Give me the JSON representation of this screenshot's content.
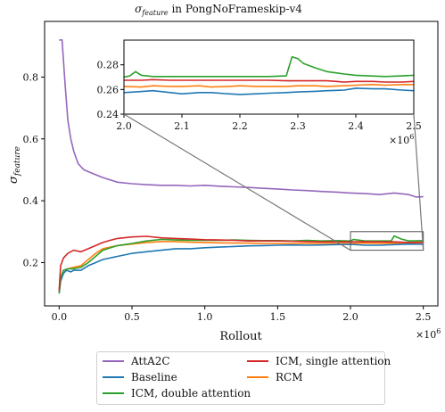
{
  "chart_data": {
    "type": "line",
    "title": "σ_feature in PongNoFrameskip-v4",
    "title_base": "σ",
    "title_sub": "feature",
    "title_rest": " in PongNoFrameskip-v4",
    "xlabel": "Rollout",
    "ylabel_base": "σ",
    "ylabel_sub": "feature",
    "x_multiplier": "×10",
    "x_multiplier_exp": "6",
    "xlim": [
      -0.1,
      2.6
    ],
    "ylim": [
      0.06,
      0.98
    ],
    "xticks": [
      {
        "v": 0.0,
        "label": "0.0"
      },
      {
        "v": 0.5,
        "label": "0.5"
      },
      {
        "v": 1.0,
        "label": "1.0"
      },
      {
        "v": 1.5,
        "label": "1.5"
      },
      {
        "v": 2.0,
        "label": "2.0"
      },
      {
        "v": 2.5,
        "label": "2.5"
      }
    ],
    "yticks": [
      {
        "v": 0.2,
        "label": "0.2"
      },
      {
        "v": 0.4,
        "label": "0.4"
      },
      {
        "v": 0.6,
        "label": "0.6"
      },
      {
        "v": 0.8,
        "label": "0.8"
      }
    ],
    "legend_placement": "below",
    "series": [
      {
        "name": "AttA2C",
        "color": "#9467bd",
        "x": [
          0,
          0.02,
          0.04,
          0.06,
          0.08,
          0.1,
          0.13,
          0.17,
          0.22,
          0.3,
          0.4,
          0.5,
          0.6,
          0.7,
          0.8,
          0.9,
          1.0,
          1.1,
          1.2,
          1.3,
          1.4,
          1.5,
          1.6,
          1.7,
          1.8,
          1.9,
          2.0,
          2.1,
          2.2,
          2.3,
          2.4,
          2.45,
          2.5
        ],
        "y": [
          0.92,
          0.92,
          0.78,
          0.66,
          0.6,
          0.56,
          0.52,
          0.5,
          0.49,
          0.475,
          0.46,
          0.455,
          0.452,
          0.45,
          0.45,
          0.448,
          0.45,
          0.447,
          0.445,
          0.443,
          0.44,
          0.438,
          0.435,
          0.433,
          0.43,
          0.428,
          0.425,
          0.423,
          0.42,
          0.425,
          0.42,
          0.412,
          0.413
        ]
      },
      {
        "name": "Baseline",
        "color": "#1f77b4",
        "x": [
          0,
          0.01,
          0.03,
          0.05,
          0.08,
          0.1,
          0.15,
          0.2,
          0.25,
          0.3,
          0.4,
          0.5,
          0.6,
          0.7,
          0.8,
          0.9,
          1.0,
          1.1,
          1.2,
          1.3,
          1.4,
          1.5,
          1.6,
          1.7,
          1.8,
          1.9,
          2.0,
          2.1,
          2.2,
          2.3,
          2.4,
          2.5
        ],
        "y": [
          0.1,
          0.14,
          0.165,
          0.175,
          0.17,
          0.175,
          0.175,
          0.19,
          0.2,
          0.21,
          0.22,
          0.23,
          0.235,
          0.24,
          0.245,
          0.245,
          0.248,
          0.25,
          0.252,
          0.254,
          0.255,
          0.256,
          0.257,
          0.256,
          0.257,
          0.258,
          0.259,
          0.256,
          0.256,
          0.258,
          0.26,
          0.259
        ]
      },
      {
        "name": "ICM, double attention",
        "color": "#2ca02c",
        "x": [
          0,
          0.01,
          0.03,
          0.06,
          0.1,
          0.15,
          0.2,
          0.25,
          0.3,
          0.4,
          0.5,
          0.6,
          0.7,
          0.8,
          0.9,
          1.0,
          1.1,
          1.2,
          1.3,
          1.4,
          1.5,
          1.6,
          1.7,
          1.8,
          1.9,
          2.0,
          2.02,
          2.1,
          2.2,
          2.28,
          2.3,
          2.35,
          2.4,
          2.5
        ],
        "y": [
          0.1,
          0.15,
          0.175,
          0.18,
          0.18,
          0.185,
          0.2,
          0.22,
          0.24,
          0.255,
          0.262,
          0.27,
          0.275,
          0.273,
          0.272,
          0.272,
          0.272,
          0.273,
          0.272,
          0.271,
          0.271,
          0.27,
          0.272,
          0.27,
          0.271,
          0.27,
          0.275,
          0.27,
          0.27,
          0.27,
          0.286,
          0.276,
          0.27,
          0.271
        ]
      },
      {
        "name": "ICM, single attention",
        "color": "#d62728",
        "x": [
          0,
          0.01,
          0.03,
          0.06,
          0.1,
          0.15,
          0.2,
          0.25,
          0.3,
          0.35,
          0.4,
          0.5,
          0.6,
          0.7,
          0.8,
          0.9,
          1.0,
          1.1,
          1.2,
          1.3,
          1.4,
          1.5,
          1.6,
          1.7,
          1.8,
          1.9,
          2.0,
          2.1,
          2.2,
          2.3,
          2.4,
          2.5
        ],
        "y": [
          0.11,
          0.19,
          0.215,
          0.23,
          0.24,
          0.235,
          0.245,
          0.255,
          0.265,
          0.272,
          0.278,
          0.283,
          0.285,
          0.28,
          0.278,
          0.276,
          0.274,
          0.273,
          0.272,
          0.27,
          0.27,
          0.27,
          0.269,
          0.268,
          0.267,
          0.267,
          0.267,
          0.268,
          0.267,
          0.267,
          0.265,
          0.266
        ]
      },
      {
        "name": "RCM",
        "color": "#ff7f0e",
        "x": [
          0,
          0.01,
          0.03,
          0.06,
          0.1,
          0.15,
          0.2,
          0.25,
          0.3,
          0.4,
          0.5,
          0.6,
          0.7,
          0.8,
          0.9,
          1.0,
          1.1,
          1.2,
          1.3,
          1.4,
          1.5,
          1.6,
          1.7,
          1.8,
          1.9,
          2.0,
          2.1,
          2.2,
          2.3,
          2.4,
          2.5
        ],
        "y": [
          0.105,
          0.15,
          0.175,
          0.18,
          0.185,
          0.19,
          0.21,
          0.23,
          0.245,
          0.255,
          0.26,
          0.265,
          0.268,
          0.268,
          0.266,
          0.265,
          0.264,
          0.263,
          0.263,
          0.262,
          0.262,
          0.262,
          0.262,
          0.262,
          0.262,
          0.262,
          0.263,
          0.262,
          0.263,
          0.263,
          0.264
        ]
      }
    ],
    "inset": {
      "xlim": [
        2.0,
        2.5
      ],
      "ylim": [
        0.24,
        0.3
      ],
      "xticks": [
        {
          "v": 2.0,
          "label": "2.0"
        },
        {
          "v": 2.1,
          "label": "2.1"
        },
        {
          "v": 2.2,
          "label": "2.2"
        },
        {
          "v": 2.3,
          "label": "2.3"
        },
        {
          "v": 2.4,
          "label": "2.4"
        },
        {
          "v": 2.5,
          "label": "2.5"
        }
      ],
      "yticks": [
        {
          "v": 0.24,
          "label": "0.24"
        },
        {
          "v": 0.26,
          "label": "0.26"
        },
        {
          "v": 0.28,
          "label": "0.28"
        }
      ],
      "x_multiplier": "×10",
      "x_multiplier_exp": "6",
      "series": [
        {
          "name": "AttA2C",
          "color": "#9467bd",
          "x": [],
          "y": []
        },
        {
          "name": "Baseline",
          "color": "#1f77b4",
          "x": [
            2.0,
            2.02,
            2.05,
            2.08,
            2.1,
            2.13,
            2.15,
            2.18,
            2.2,
            2.23,
            2.25,
            2.28,
            2.3,
            2.33,
            2.35,
            2.38,
            2.4,
            2.43,
            2.45,
            2.48,
            2.5
          ],
          "y": [
            0.2575,
            0.258,
            0.259,
            0.2575,
            0.2565,
            0.2575,
            0.2575,
            0.2565,
            0.256,
            0.2565,
            0.257,
            0.2575,
            0.258,
            0.2585,
            0.259,
            0.2595,
            0.261,
            0.2605,
            0.2605,
            0.2595,
            0.259
          ]
        },
        {
          "name": "ICM, double attention",
          "color": "#2ca02c",
          "x": [
            2.0,
            2.01,
            2.02,
            2.03,
            2.05,
            2.08,
            2.1,
            2.15,
            2.2,
            2.25,
            2.28,
            2.29,
            2.3,
            2.31,
            2.33,
            2.35,
            2.38,
            2.4,
            2.45,
            2.48,
            2.5
          ],
          "y": [
            0.27,
            0.271,
            0.2745,
            0.2715,
            0.2705,
            0.2705,
            0.2705,
            0.2705,
            0.2705,
            0.2705,
            0.271,
            0.2865,
            0.285,
            0.281,
            0.2775,
            0.2745,
            0.2725,
            0.2715,
            0.2705,
            0.271,
            0.2715
          ]
        },
        {
          "name": "ICM, single attention",
          "color": "#d62728",
          "x": [
            2.0,
            2.03,
            2.05,
            2.08,
            2.1,
            2.13,
            2.15,
            2.18,
            2.2,
            2.23,
            2.25,
            2.28,
            2.3,
            2.33,
            2.35,
            2.38,
            2.4,
            2.43,
            2.45,
            2.48,
            2.5
          ],
          "y": [
            0.2675,
            0.2675,
            0.268,
            0.2675,
            0.2675,
            0.2675,
            0.2675,
            0.2675,
            0.2675,
            0.2675,
            0.2675,
            0.267,
            0.267,
            0.267,
            0.267,
            0.266,
            0.2665,
            0.2665,
            0.266,
            0.266,
            0.2665
          ]
        },
        {
          "name": "RCM",
          "color": "#ff7f0e",
          "x": [
            2.0,
            2.03,
            2.05,
            2.08,
            2.1,
            2.13,
            2.15,
            2.18,
            2.2,
            2.23,
            2.25,
            2.28,
            2.3,
            2.33,
            2.35,
            2.38,
            2.4,
            2.43,
            2.45,
            2.48,
            2.5
          ],
          "y": [
            0.2625,
            0.262,
            0.263,
            0.2625,
            0.2625,
            0.263,
            0.262,
            0.2625,
            0.263,
            0.2625,
            0.2625,
            0.2625,
            0.263,
            0.263,
            0.2625,
            0.263,
            0.2635,
            0.264,
            0.2635,
            0.264,
            0.264
          ]
        }
      ]
    },
    "legend_columns": [
      [
        "AttA2C",
        "Baseline",
        "ICM, double attention"
      ],
      [
        "ICM, single attention",
        "RCM"
      ]
    ]
  }
}
